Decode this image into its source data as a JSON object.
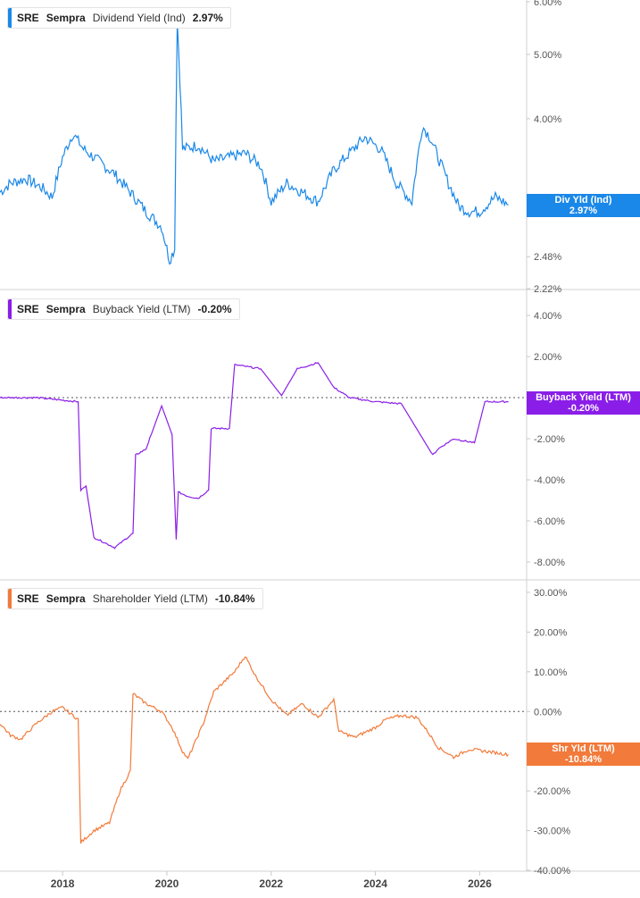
{
  "panels": [
    {
      "ticker": "SRE",
      "company": "Sempra",
      "metric": "Dividend Yield (Ind)",
      "value": "2.97%",
      "color": "#1a88e8",
      "tag_label": "Div Yld (Ind)",
      "tag_value": "2.97%",
      "y_ticks": [
        "6.00%",
        "5.00%",
        "4.00%",
        "2.48%",
        "2.22%"
      ],
      "zero_line": false
    },
    {
      "ticker": "SRE",
      "company": "Sempra",
      "metric": "Buyback Yield (LTM)",
      "value": "-0.20%",
      "color": "#8a1ee8",
      "tag_label": "Buyback Yield (LTM)",
      "tag_value": "-0.20%",
      "y_ticks": [
        "4.00%",
        "2.00%",
        "-2.00%",
        "-4.00%",
        "-6.00%",
        "-8.00%"
      ],
      "zero_line": true
    },
    {
      "ticker": "SRE",
      "company": "Sempra",
      "metric": "Shareholder Yield (LTM)",
      "value": "-10.84%",
      "color": "#f27a3a",
      "tag_label": "Shr Yld (LTM)",
      "tag_value": "-10.84%",
      "y_ticks": [
        "30.00%",
        "20.00%",
        "10.00%",
        "0.00%",
        "-20.00%",
        "-30.00%",
        "-40.00%"
      ],
      "zero_line": true
    }
  ],
  "x_ticks": [
    "2018",
    "2020",
    "2022",
    "2024",
    "2026"
  ],
  "chart_data": [
    {
      "type": "line",
      "title": "SRE Sempra Dividend Yield (Ind) 2.97%",
      "x_range": [
        2016.8,
        2026.9
      ],
      "ylim": [
        2.22,
        6.0
      ],
      "y_scale": "log",
      "series": [
        {
          "name": "Dividend Yield (Ind)",
          "x": [
            2016.8,
            2017.0,
            2017.3,
            2017.6,
            2017.8,
            2018.0,
            2018.2,
            2018.4,
            2018.7,
            2019.0,
            2019.3,
            2019.6,
            2019.9,
            2020.05,
            2020.15,
            2020.2,
            2020.3,
            2020.6,
            2020.9,
            2021.2,
            2021.5,
            2021.8,
            2022.0,
            2022.3,
            2022.6,
            2022.9,
            2023.2,
            2023.5,
            2023.8,
            2024.1,
            2024.4,
            2024.7,
            2024.9,
            2025.05,
            2025.2,
            2025.4,
            2025.6,
            2025.8,
            2026.0,
            2026.3,
            2026.55
          ],
          "y": [
            3.1,
            3.2,
            3.25,
            3.15,
            3.05,
            3.5,
            3.8,
            3.6,
            3.45,
            3.3,
            3.1,
            2.9,
            2.75,
            2.45,
            2.55,
            5.6,
            3.6,
            3.65,
            3.45,
            3.5,
            3.55,
            3.4,
            3.0,
            3.2,
            3.1,
            3.0,
            3.35,
            3.55,
            3.75,
            3.6,
            3.2,
            3.0,
            3.9,
            3.75,
            3.5,
            3.2,
            2.95,
            2.9,
            2.9,
            3.05,
            2.97
          ]
        }
      ]
    },
    {
      "type": "line",
      "title": "SRE Sempra Buyback Yield (LTM) -0.20%",
      "x_range": [
        2016.8,
        2026.9
      ],
      "ylim": [
        -8.0,
        4.0
      ],
      "series": [
        {
          "name": "Buyback Yield (LTM)",
          "x": [
            2016.8,
            2017.5,
            2018.3,
            2018.35,
            2018.45,
            2018.6,
            2019.0,
            2019.35,
            2019.4,
            2019.6,
            2019.7,
            2019.9,
            2020.1,
            2020.18,
            2020.22,
            2020.4,
            2020.6,
            2020.8,
            2020.85,
            2021.2,
            2021.3,
            2021.8,
            2022.2,
            2022.5,
            2022.9,
            2023.2,
            2023.5,
            2024.0,
            2024.5,
            2025.1,
            2025.2,
            2025.5,
            2025.9,
            2026.1,
            2026.55
          ],
          "y": [
            0.0,
            0.0,
            -0.2,
            -4.5,
            -4.3,
            -6.8,
            -7.3,
            -6.6,
            -2.8,
            -2.5,
            -1.8,
            -0.4,
            -1.8,
            -6.9,
            -4.6,
            -4.8,
            -4.9,
            -4.5,
            -1.5,
            -1.5,
            1.6,
            1.4,
            0.1,
            1.4,
            1.7,
            0.5,
            0.0,
            -0.2,
            -0.3,
            -2.8,
            -2.5,
            -2.0,
            -2.2,
            -0.2,
            -0.2
          ]
        }
      ]
    },
    {
      "type": "line",
      "title": "SRE Sempra Shareholder Yield (LTM) -10.84%",
      "x_range": [
        2016.8,
        2026.9
      ],
      "ylim": [
        -40.0,
        30.0
      ],
      "series": [
        {
          "name": "Shareholder Yield (LTM)",
          "x": [
            2016.8,
            2017.0,
            2017.2,
            2017.5,
            2017.8,
            2018.0,
            2018.3,
            2018.35,
            2018.6,
            2018.9,
            2019.1,
            2019.3,
            2019.35,
            2019.6,
            2019.9,
            2020.1,
            2020.3,
            2020.4,
            2020.7,
            2020.9,
            2021.1,
            2021.3,
            2021.5,
            2021.7,
            2022.0,
            2022.3,
            2022.6,
            2022.9,
            2023.2,
            2023.3,
            2023.6,
            2024.0,
            2024.2,
            2024.5,
            2024.8,
            2025.0,
            2025.2,
            2025.5,
            2025.8,
            2026.1,
            2026.55
          ],
          "y": [
            -3.0,
            -6.0,
            -7.0,
            -3.0,
            0.0,
            1.0,
            -2.0,
            -33.0,
            -30.0,
            -28.0,
            -20.0,
            -15.0,
            4.5,
            2.0,
            0.0,
            -4.0,
            -10.0,
            -12.0,
            -3.0,
            5.0,
            7.5,
            10.0,
            14.0,
            9.0,
            3.0,
            -1.0,
            2.0,
            -1.5,
            3.0,
            -5.0,
            -6.5,
            -4.0,
            -2.0,
            -1.0,
            -1.5,
            -5.0,
            -9.0,
            -11.5,
            -9.5,
            -10.0,
            -10.84
          ]
        }
      ]
    }
  ]
}
